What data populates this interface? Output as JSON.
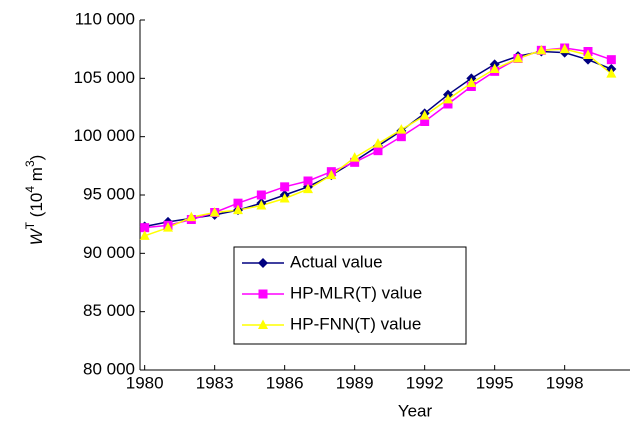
{
  "chart_data": {
    "type": "line",
    "xlabel": "Year",
    "ylabel": {
      "base": "W",
      "base_sup": "T",
      "unit": " (10",
      "unit_sup": "4",
      "unit_rest": " m",
      "unit_rest_sup": "3",
      "close": ")"
    },
    "x": [
      1980,
      1981,
      1982,
      1983,
      1984,
      1985,
      1986,
      1987,
      1988,
      1989,
      1990,
      1991,
      1992,
      1993,
      1994,
      1995,
      1996,
      1997,
      1998,
      1999,
      2000
    ],
    "series": [
      {
        "name": "Actual value",
        "color": "#000080",
        "marker": "diamond",
        "values": [
          92300,
          92700,
          93000,
          93300,
          93700,
          94300,
          95000,
          95700,
          96700,
          97900,
          99200,
          100500,
          102000,
          103600,
          105000,
          106200,
          106900,
          107300,
          107200,
          106600,
          105800
        ]
      },
      {
        "name": "HP-MLR(T) value",
        "color": "#ff00ff",
        "marker": "square",
        "values": [
          92200,
          92400,
          92900,
          93500,
          94300,
          95000,
          95700,
          96200,
          97000,
          97800,
          98800,
          100000,
          101300,
          102800,
          104300,
          105600,
          106700,
          107400,
          107600,
          107300,
          106600
        ]
      },
      {
        "name": "HP-FNN(T) value",
        "color": "#ffff00",
        "marker": "triangle",
        "values": [
          91500,
          92200,
          93100,
          93500,
          93700,
          94100,
          94700,
          95500,
          96700,
          98200,
          99400,
          100600,
          101800,
          103200,
          104600,
          105800,
          106700,
          107400,
          107500,
          107000,
          105400
        ]
      }
    ],
    "xlim": [
      1979.8,
      2000.8
    ],
    "xticks": [
      1980,
      1983,
      1986,
      1989,
      1992,
      1995,
      1998
    ],
    "ylim": [
      80000,
      110000
    ],
    "yticks": [
      {
        "value": 80000,
        "label": "80 000"
      },
      {
        "value": 85000,
        "label": "85 000"
      },
      {
        "value": 90000,
        "label": "90 000"
      },
      {
        "value": 95000,
        "label": "95 000"
      },
      {
        "value": 100000,
        "label": "100 000"
      },
      {
        "value": 105000,
        "label": "105 000"
      },
      {
        "value": 110000,
        "label": "110 000"
      }
    ],
    "grid": false,
    "legend": "center"
  }
}
